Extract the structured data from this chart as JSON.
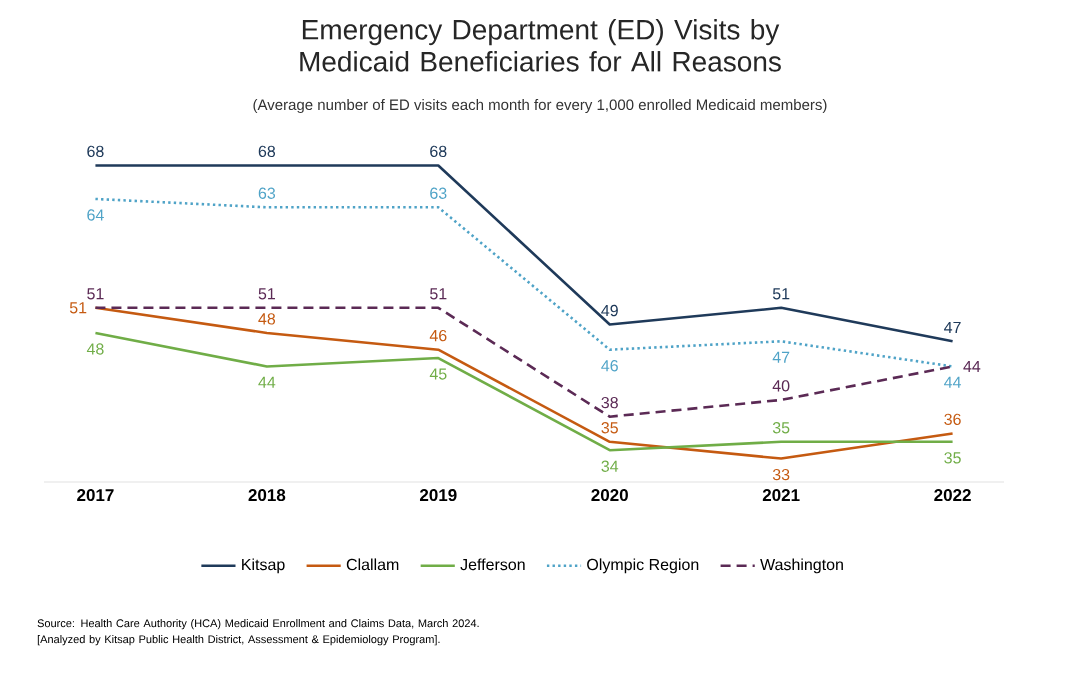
{
  "chart_data": {
    "type": "line",
    "title": "Emergency Department (ED) Visits by Medicaid Beneficiaries for All Reasons",
    "subtitle": "(Average number of ED visits each month for every 1,000 enrolled Medicaid members)",
    "categories": [
      "2017",
      "2018",
      "2019",
      "2020",
      "2021",
      "2022"
    ],
    "series": [
      {
        "name": "Kitsap",
        "color": "#1f3a5a",
        "line_style": "solid",
        "values": [
          68,
          68,
          68,
          49,
          51,
          47
        ]
      },
      {
        "name": "Clallam",
        "color": "#c55a11",
        "line_style": "solid",
        "values": [
          51,
          48,
          46,
          35,
          33,
          36
        ]
      },
      {
        "name": "Jefferson",
        "color": "#70ad47",
        "line_style": "solid",
        "values": [
          48,
          44,
          45,
          34,
          35,
          35
        ]
      },
      {
        "name": "Olympic Region",
        "color": "#4fa3c7",
        "line_style": "dotted",
        "values": [
          64,
          63,
          63,
          46,
          47,
          44
        ]
      },
      {
        "name": "Washington",
        "color": "#5b2a55",
        "line_style": "dashed",
        "values": [
          51,
          51,
          51,
          38,
          40,
          44
        ]
      }
    ],
    "data_labels": true,
    "legend": "bottom",
    "grid": false,
    "annotations": [
      "Source: Health Care Authority (HCA) Medicaid Enrollment and Claims Data, March 2024.",
      "[Analyzed by Kitsap Public Health District, Assessment & Epidemiology Program]."
    ]
  }
}
